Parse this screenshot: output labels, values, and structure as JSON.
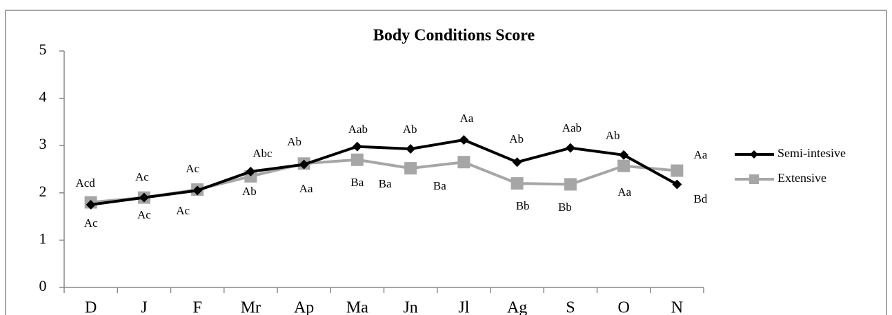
{
  "chart_data": {
    "type": "line",
    "title": "Body Conditions Score",
    "categories": [
      "D",
      "J",
      "F",
      "Mr",
      "Ap",
      "Ma",
      "Jn",
      "Jl",
      "Ag",
      "S",
      "O",
      "N"
    ],
    "series": [
      {
        "name": "Semi-intesive",
        "color": "#000000",
        "marker": "diamond",
        "values": [
          1.75,
          1.9,
          2.05,
          2.45,
          2.6,
          2.98,
          2.93,
          3.12,
          2.65,
          2.95,
          2.8,
          2.18
        ]
      },
      {
        "name": "Extensive",
        "color": "#a6a6a6",
        "marker": "square",
        "values": [
          1.8,
          1.9,
          2.07,
          2.35,
          2.62,
          2.7,
          2.52,
          2.65,
          2.2,
          2.18,
          2.57,
          2.47
        ]
      }
    ],
    "labels_above": [
      "Acd",
      "Ac",
      "Ac",
      "Abc",
      "Ab",
      "Aab",
      "Ab",
      "Aa",
      "Ab",
      "Aab",
      "Ab",
      "Aa"
    ],
    "labels_below": [
      "Ac",
      "Ac",
      "Ac",
      "Ab",
      "Aa",
      "Ba",
      "Ba",
      "Ba",
      "Bb",
      "Bb",
      "Aa",
      "Bd"
    ],
    "ylim": [
      0,
      5
    ],
    "yticks": [
      0,
      1,
      2,
      3,
      4,
      5
    ],
    "legend": "right"
  }
}
